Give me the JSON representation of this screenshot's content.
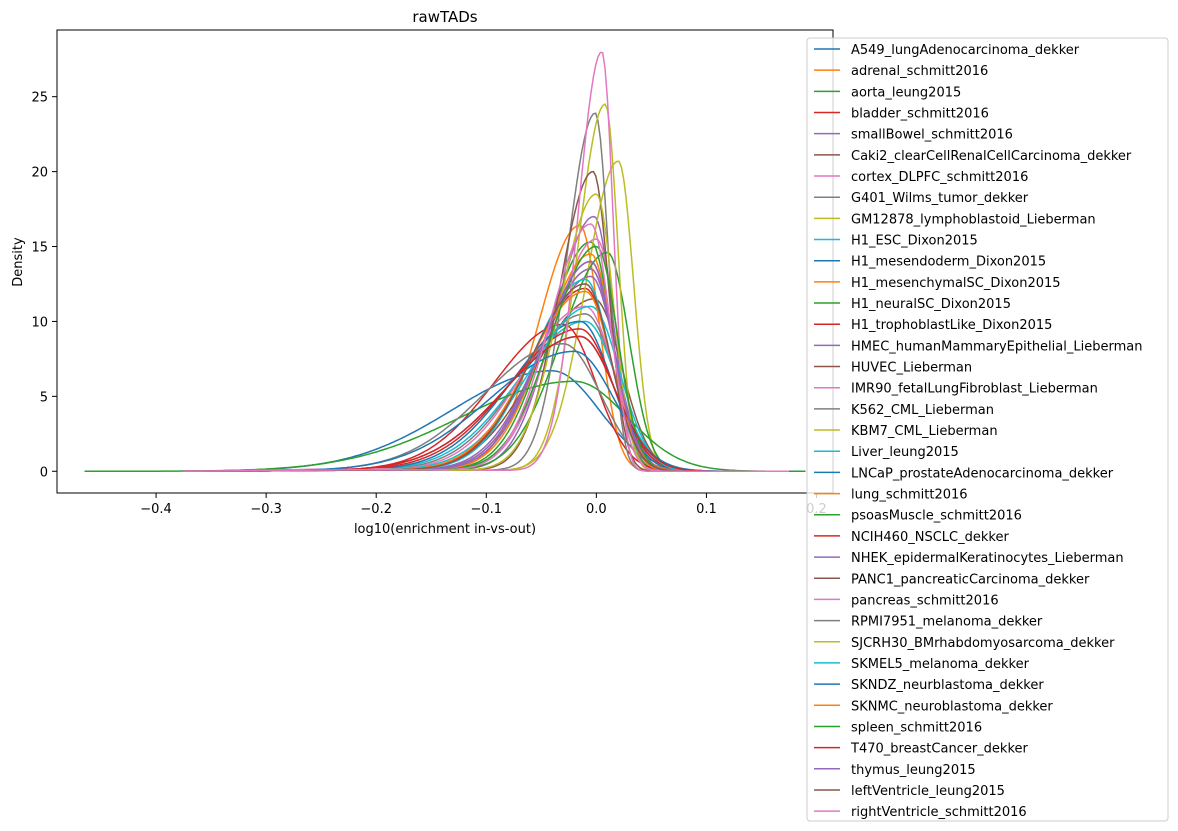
{
  "chart_data": {
    "type": "line",
    "title": "rawTADs",
    "xlabel": "log10(enrichment in-vs-out)",
    "ylabel": "Density",
    "xlim": [
      -0.49,
      0.215
    ],
    "ylim": [
      -1.45,
      29.45
    ],
    "x_ticks": [
      -0.4,
      -0.3,
      -0.2,
      -0.1,
      0.0,
      0.1,
      0.2
    ],
    "x_tick_labels": [
      "−0.4",
      "−0.3",
      "−0.2",
      "−0.1",
      "0.0",
      "0.1",
      "0.2"
    ],
    "y_ticks": [
      0,
      5,
      10,
      15,
      20,
      25
    ],
    "y_tick_labels": [
      "0",
      "5",
      "10",
      "15",
      "20",
      "25"
    ],
    "grid": false,
    "legend_position": "right, overlapping plot",
    "series": [
      {
        "name": "A549_lungAdenocarcinoma_dekker",
        "color": "#1f77b4",
        "peak_x": -0.04,
        "peak_y": 6.7
      },
      {
        "name": "adrenal_schmitt2016",
        "color": "#ff7f0e",
        "peak_x": -0.015,
        "peak_y": 16.4
      },
      {
        "name": "aorta_leung2015",
        "color": "#2ca02c",
        "peak_x": -0.005,
        "peak_y": 15.3
      },
      {
        "name": "bladder_schmitt2016",
        "color": "#d62728",
        "peak_x": -0.01,
        "peak_y": 12.2
      },
      {
        "name": "smallBowel_schmitt2016",
        "color": "#9467bd",
        "peak_x": -0.002,
        "peak_y": 17.0
      },
      {
        "name": "Caki2_clearCellRenalCellCarcinoma_dekker",
        "color": "#8c564b",
        "peak_x": -0.002,
        "peak_y": 11.5
      },
      {
        "name": "cortex_DLPFC_schmitt2016",
        "color": "#e377c2",
        "peak_x": 0.0,
        "peak_y": 15.5
      },
      {
        "name": "G401_Wilms_tumor_dekker",
        "color": "#7f7f7f",
        "peak_x": -0.01,
        "peak_y": 10.5
      },
      {
        "name": "GM12878_lymphoblastoid_Lieberman",
        "color": "#bcbd22",
        "peak_x": 0.02,
        "peak_y": 20.7
      },
      {
        "name": "H1_ESC_Dixon2015",
        "color": "#17becf",
        "peak_x": -0.01,
        "peak_y": 10.0
      },
      {
        "name": "H1_mesendoderm_Dixon2015",
        "color": "#1f77b4",
        "peak_x": -0.015,
        "peak_y": 9.0
      },
      {
        "name": "H1_mesenchymalSC_Dixon2015",
        "color": "#ff7f0e",
        "peak_x": -0.005,
        "peak_y": 13.5
      },
      {
        "name": "H1_neuralSC_Dixon2015",
        "color": "#2ca02c",
        "peak_x": 0.01,
        "peak_y": 14.6
      },
      {
        "name": "H1_trophoblastLike_Dixon2015",
        "color": "#d62728",
        "peak_x": -0.03,
        "peak_y": 9.8
      },
      {
        "name": "HMEC_humanMammaryEpithelial_Lieberman",
        "color": "#9467bd",
        "peak_x": -0.005,
        "peak_y": 13.0
      },
      {
        "name": "HUVEC_Lieberman",
        "color": "#8c564b",
        "peak_x": -0.005,
        "peak_y": 14.0
      },
      {
        "name": "IMR90_fetalLungFibroblast_Lieberman",
        "color": "#e377c2",
        "peak_x": -0.01,
        "peak_y": 11.0
      },
      {
        "name": "K562_CML_Lieberman",
        "color": "#7f7f7f",
        "peak_x": -0.001,
        "peak_y": 23.9
      },
      {
        "name": "KBM7_CML_Lieberman",
        "color": "#bcbd22",
        "peak_x": 0.008,
        "peak_y": 24.5
      },
      {
        "name": "Liver_leung2015",
        "color": "#17becf",
        "peak_x": -0.01,
        "peak_y": 12.8
      },
      {
        "name": "LNCaP_prostateAdenocarcinoma_dekker",
        "color": "#1f77b4",
        "peak_x": -0.015,
        "peak_y": 10.0
      },
      {
        "name": "lung_schmitt2016",
        "color": "#ff7f0e",
        "peak_x": -0.005,
        "peak_y": 14.5
      },
      {
        "name": "psoasMuscle_schmitt2016",
        "color": "#2ca02c",
        "peak_x": -0.02,
        "peak_y": 6.0
      },
      {
        "name": "NCIH460_NSCLC_dekker",
        "color": "#d62728",
        "peak_x": -0.015,
        "peak_y": 9.5
      },
      {
        "name": "NHEK_epidermalKeratinocytes_Lieberman",
        "color": "#9467bd",
        "peak_x": -0.005,
        "peak_y": 13.5
      },
      {
        "name": "PANC1_pancreaticCarcinoma_dekker",
        "color": "#8c564b",
        "peak_x": -0.003,
        "peak_y": 20.0
      },
      {
        "name": "pancreas_schmitt2016",
        "color": "#e377c2",
        "peak_x": 0.005,
        "peak_y": 28.0
      },
      {
        "name": "RPMI7951_melanoma_dekker",
        "color": "#7f7f7f",
        "peak_x": -0.03,
        "peak_y": 8.5
      },
      {
        "name": "SJCRH30_BMrhabdomyosarcoma_dekker",
        "color": "#bcbd22",
        "peak_x": 0.0,
        "peak_y": 18.5
      },
      {
        "name": "SKMEL5_melanoma_dekker",
        "color": "#17becf",
        "peak_x": -0.005,
        "peak_y": 11.0
      },
      {
        "name": "SKNDZ_neurblastoma_dekker",
        "color": "#1f77b4",
        "peak_x": -0.02,
        "peak_y": 8.0
      },
      {
        "name": "SKNMC_neuroblastoma_dekker",
        "color": "#ff7f0e",
        "peak_x": -0.01,
        "peak_y": 12.0
      },
      {
        "name": "spleen_schmitt2016",
        "color": "#2ca02c",
        "peak_x": 0.0,
        "peak_y": 15.0
      },
      {
        "name": "T470_breastCancer_dekker",
        "color": "#d62728",
        "peak_x": -0.015,
        "peak_y": 9.0
      },
      {
        "name": "thymus_leung2015",
        "color": "#9467bd",
        "peak_x": -0.005,
        "peak_y": 14.0
      },
      {
        "name": "leftVentricle_leung2015",
        "color": "#8c564b",
        "peak_x": -0.01,
        "peak_y": 12.5
      },
      {
        "name": "rightVentricle_schmitt2016",
        "color": "#e377c2",
        "peak_x": -0.005,
        "peak_y": 16.5
      }
    ]
  }
}
